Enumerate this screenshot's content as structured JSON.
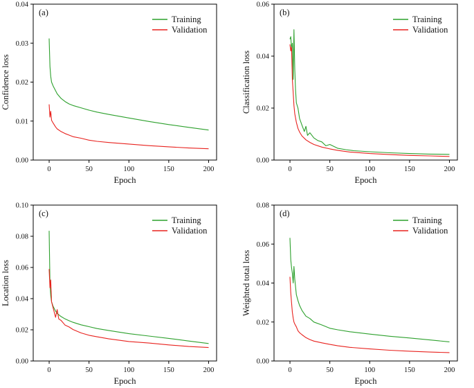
{
  "colors": {
    "training": "#2ca02c",
    "validation": "#e8211d",
    "axis": "#000000"
  },
  "chart_data": [
    {
      "type": "line",
      "panel_label": "(a)",
      "xlabel": "Epoch",
      "ylabel": "Confidence loss",
      "xlim": [
        -20,
        210
      ],
      "ylim": [
        0,
        0.04
      ],
      "xticks": [
        "0",
        "50",
        "100",
        "150",
        "200"
      ],
      "xtick_values": [
        0,
        50,
        100,
        150,
        200
      ],
      "yticks": [
        "0.00",
        "0.01",
        "0.02",
        "0.03",
        "0.04"
      ],
      "ytick_values": [
        0,
        0.01,
        0.02,
        0.03,
        0.04
      ],
      "legend_position": "top-right",
      "series": [
        {
          "name": "Training",
          "x": [
            0,
            1,
            2,
            3,
            5,
            8,
            10,
            15,
            20,
            25,
            30,
            40,
            50,
            60,
            75,
            100,
            125,
            150,
            175,
            200
          ],
          "values": [
            0.0312,
            0.024,
            0.0215,
            0.02,
            0.019,
            0.0178,
            0.017,
            0.0158,
            0.015,
            0.0144,
            0.014,
            0.0134,
            0.0128,
            0.0123,
            0.0117,
            0.0108,
            0.0099,
            0.0091,
            0.0084,
            0.0077
          ]
        },
        {
          "name": "Validation",
          "x": [
            0,
            1,
            2,
            3,
            5,
            8,
            10,
            15,
            20,
            25,
            30,
            40,
            50,
            60,
            75,
            100,
            125,
            150,
            175,
            200
          ],
          "values": [
            0.0143,
            0.011,
            0.0125,
            0.0102,
            0.0095,
            0.0085,
            0.008,
            0.0073,
            0.0068,
            0.0064,
            0.006,
            0.0056,
            0.0051,
            0.0048,
            0.0045,
            0.0041,
            0.0037,
            0.0034,
            0.0031,
            0.0029
          ]
        }
      ]
    },
    {
      "type": "line",
      "panel_label": "(b)",
      "xlabel": "Epoch",
      "ylabel": "Classification loss",
      "xlim": [
        -20,
        210
      ],
      "ylim": [
        0,
        0.06
      ],
      "xticks": [
        "0",
        "50",
        "100",
        "150",
        "200"
      ],
      "xtick_values": [
        0,
        50,
        100,
        150,
        200
      ],
      "yticks": [
        "0.00",
        "0.02",
        "0.04",
        "0.06"
      ],
      "ytick_values": [
        0,
        0.02,
        0.04,
        0.06
      ],
      "legend_position": "top-right",
      "series": [
        {
          "name": "Training",
          "x": [
            0,
            1,
            2,
            3,
            4,
            5,
            6,
            7,
            8,
            10,
            12,
            15,
            18,
            20,
            22,
            25,
            30,
            35,
            40,
            45,
            50,
            60,
            70,
            80,
            100,
            125,
            150,
            175,
            200
          ],
          "values": [
            0.0465,
            0.0475,
            0.043,
            0.045,
            0.031,
            0.0502,
            0.035,
            0.027,
            0.022,
            0.02,
            0.016,
            0.0135,
            0.011,
            0.013,
            0.0095,
            0.0105,
            0.0085,
            0.0075,
            0.007,
            0.0055,
            0.006,
            0.0045,
            0.004,
            0.0036,
            0.0032,
            0.0028,
            0.0025,
            0.0023,
            0.0022
          ]
        },
        {
          "name": "Validation",
          "x": [
            0,
            1,
            2,
            3,
            4,
            5,
            6,
            8,
            10,
            12,
            15,
            20,
            25,
            30,
            40,
            50,
            60,
            75,
            100,
            125,
            150,
            175,
            200
          ],
          "values": [
            0.0445,
            0.042,
            0.0435,
            0.031,
            0.026,
            0.021,
            0.0178,
            0.0145,
            0.0122,
            0.0108,
            0.0093,
            0.0078,
            0.0068,
            0.006,
            0.005,
            0.0043,
            0.0037,
            0.0031,
            0.0025,
            0.0021,
            0.0018,
            0.0016,
            0.0014
          ]
        }
      ]
    },
    {
      "type": "line",
      "panel_label": "(c)",
      "xlabel": "Epoch",
      "ylabel": "Location loss",
      "xlim": [
        -20,
        210
      ],
      "ylim": [
        0,
        0.1
      ],
      "xticks": [
        "0",
        "50",
        "100",
        "150",
        "200"
      ],
      "xtick_values": [
        0,
        50,
        100,
        150,
        200
      ],
      "yticks": [
        "0.00",
        "0.02",
        "0.04",
        "0.06",
        "0.08",
        "0.10"
      ],
      "ytick_values": [
        0,
        0.02,
        0.04,
        0.06,
        0.08,
        0.1
      ],
      "legend_position": "top-right",
      "series": [
        {
          "name": "Training",
          "x": [
            0,
            1,
            2,
            3,
            5,
            8,
            10,
            15,
            20,
            25,
            30,
            40,
            50,
            60,
            75,
            100,
            125,
            150,
            175,
            200
          ],
          "values": [
            0.0835,
            0.05,
            0.042,
            0.038,
            0.035,
            0.032,
            0.0305,
            0.0285,
            0.027,
            0.0258,
            0.0248,
            0.0232,
            0.022,
            0.0208,
            0.0195,
            0.0175,
            0.016,
            0.0145,
            0.0128,
            0.0112
          ]
        },
        {
          "name": "Validation",
          "x": [
            0,
            1,
            2,
            3,
            5,
            8,
            10,
            12,
            15,
            20,
            25,
            30,
            40,
            50,
            60,
            75,
            100,
            125,
            150,
            175,
            200
          ],
          "values": [
            0.059,
            0.047,
            0.052,
            0.038,
            0.034,
            0.028,
            0.033,
            0.027,
            0.026,
            0.023,
            0.0218,
            0.0202,
            0.018,
            0.0165,
            0.0155,
            0.0142,
            0.0125,
            0.0115,
            0.0103,
            0.0093,
            0.0086
          ]
        }
      ]
    },
    {
      "type": "line",
      "panel_label": "(d)",
      "xlabel": "Epoch",
      "ylabel": "Weighted total loss",
      "xlim": [
        -20,
        210
      ],
      "ylim": [
        0,
        0.08
      ],
      "xticks": [
        "0",
        "50",
        "100",
        "150",
        "200"
      ],
      "xtick_values": [
        0,
        50,
        100,
        150,
        200
      ],
      "yticks": [
        "0.00",
        "0.02",
        "0.04",
        "0.06",
        "0.08"
      ],
      "ytick_values": [
        0,
        0.02,
        0.04,
        0.06,
        0.08
      ],
      "legend_position": "top-right",
      "series": [
        {
          "name": "Training",
          "x": [
            0,
            1,
            2,
            3,
            4,
            5,
            6,
            8,
            10,
            12,
            15,
            20,
            25,
            30,
            40,
            50,
            60,
            75,
            100,
            125,
            150,
            175,
            200
          ],
          "values": [
            0.0632,
            0.052,
            0.048,
            0.045,
            0.04,
            0.0485,
            0.042,
            0.034,
            0.031,
            0.0285,
            0.026,
            0.023,
            0.0218,
            0.02,
            0.0185,
            0.0168,
            0.016,
            0.015,
            0.0138,
            0.0127,
            0.0118,
            0.0108,
            0.0098
          ]
        },
        {
          "name": "Validation",
          "x": [
            0,
            1,
            2,
            3,
            4,
            5,
            6,
            8,
            10,
            12,
            15,
            20,
            25,
            30,
            40,
            50,
            60,
            75,
            100,
            125,
            150,
            175,
            200
          ],
          "values": [
            0.0432,
            0.035,
            0.03,
            0.025,
            0.022,
            0.02,
            0.019,
            0.0175,
            0.0155,
            0.0145,
            0.0135,
            0.012,
            0.011,
            0.0102,
            0.0093,
            0.0085,
            0.0078,
            0.007,
            0.0062,
            0.0055,
            0.005,
            0.0046,
            0.0043
          ]
        }
      ]
    }
  ]
}
